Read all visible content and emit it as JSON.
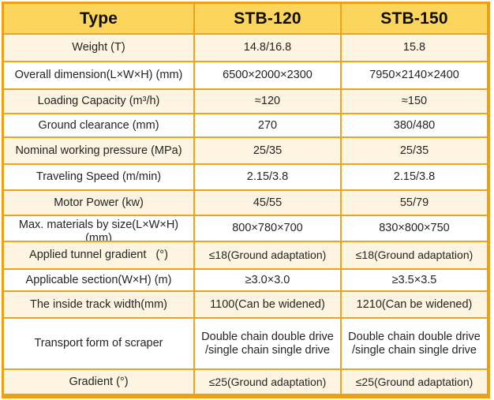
{
  "table": {
    "columns": [
      "Type",
      "STB-120",
      "STB-150"
    ],
    "rows": [
      {
        "label": "Weight (T)",
        "stb120": "14.8/16.8",
        "stb150": "15.8"
      },
      {
        "label": "Overall dimension(L×W×H) (mm)",
        "stb120": "6500×2000×2300",
        "stb150": "7950×2140×2400"
      },
      {
        "label": "Loading Capacity (m³/h)",
        "stb120": "≈120",
        "stb150": "≈150"
      },
      {
        "label": "Ground clearance (mm)",
        "stb120": "270",
        "stb150": "380/480"
      },
      {
        "label": "Nominal working pressure (MPa)",
        "stb120": "25/35",
        "stb150": "25/35"
      },
      {
        "label": "Traveling Speed (m/min)",
        "stb120": "2.15/3.8",
        "stb150": "2.15/3.8"
      },
      {
        "label": "Motor Power (kw)",
        "stb120": "45/55",
        "stb150": "55/79"
      },
      {
        "label": "Max. materials by size(L×W×H) (mm)",
        "stb120": "800×780×700",
        "stb150": "830×800×750"
      },
      {
        "label": "Applied tunnel gradient   (°)",
        "stb120": "≤18(Ground adaptation)",
        "stb150": "≤18(Ground adaptation)"
      },
      {
        "label": "Applicable section(W×H) (m)",
        "stb120": "≥3.0×3.0",
        "stb150": "≥3.5×3.5"
      },
      {
        "label": "The inside track width(mm)",
        "stb120": "1100(Can be widened)",
        "stb150": "1210(Can be widened)"
      },
      {
        "label": "Transport form of scraper",
        "stb120": "Double chain double drive /single chain single drive",
        "stb150": "Double chain double drive /single chain single drive"
      },
      {
        "label": "Gradient (°)",
        "stb120": "≤25(Ground adaptation)",
        "stb150": "≤25(Ground adaptation)"
      }
    ],
    "colors": {
      "border": "#EEA31B",
      "header_bg": "#FBD55C",
      "row_alt_bg": "#FDF5E1",
      "row_bg": "#FFFFFF",
      "header_text": "#0E0E0E",
      "body_text": "#242424"
    }
  }
}
